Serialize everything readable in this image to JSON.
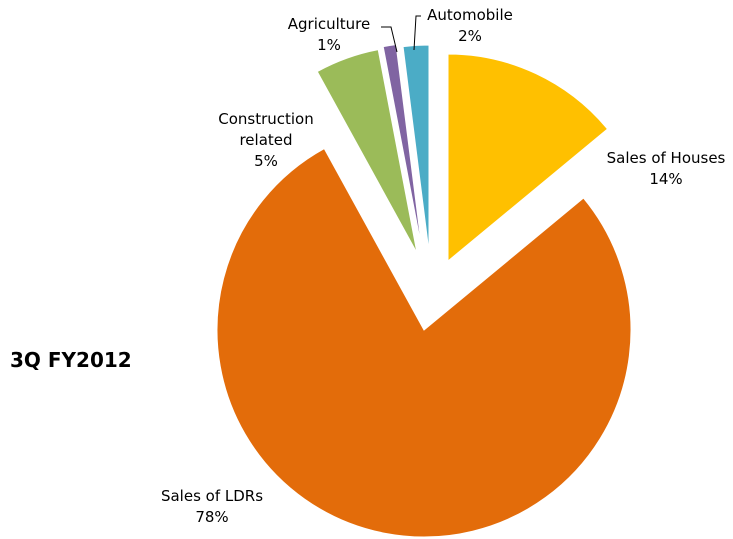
{
  "chart_data": {
    "type": "pie",
    "title": "3Q FY2012",
    "categories": [
      "Sales of Houses",
      "Sales of LDRs",
      "Construction related",
      "Agriculture",
      "Automobile"
    ],
    "values": [
      14,
      78,
      5,
      1,
      2
    ],
    "labels": [
      "14%",
      "78%",
      "5%",
      "1%",
      "2%"
    ],
    "colors": [
      "#FFC000",
      "#E36C0A",
      "#9BBB59",
      "#8064A2",
      "#4BACC6"
    ],
    "exploded": true,
    "legend": "none",
    "data_labels": "category name and percentage beside each slice"
  }
}
